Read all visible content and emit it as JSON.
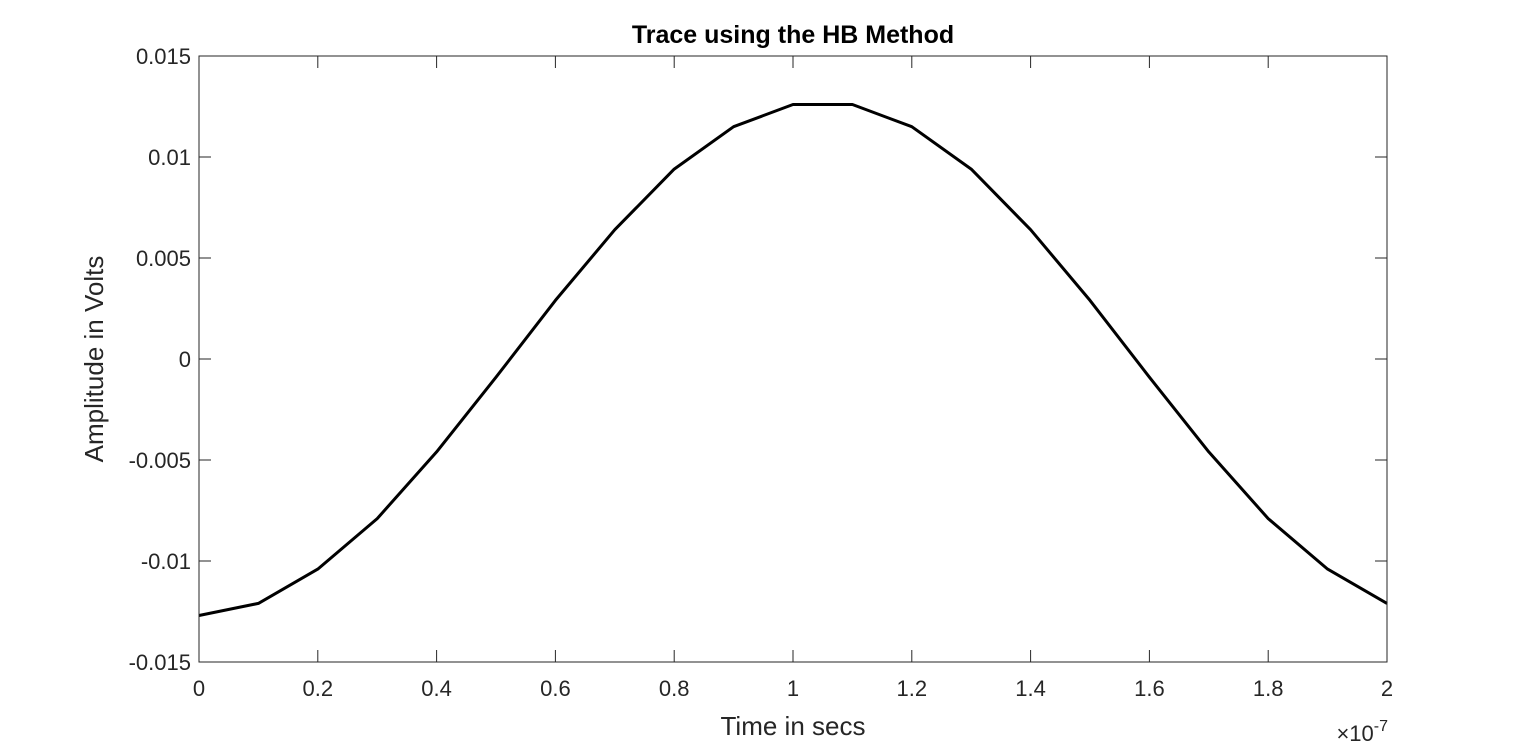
{
  "chart_data": {
    "type": "line",
    "title": "Trace using the HB Method",
    "xlabel": "Time in secs",
    "ylabel": "Amplitude in Volts",
    "x_exponent": {
      "base": "×10",
      "power": "-7"
    },
    "xlim": [
      0,
      2
    ],
    "ylim": [
      -0.015,
      0.015
    ],
    "xticks": [
      0,
      0.2,
      0.4,
      0.6,
      0.8,
      1,
      1.2,
      1.4,
      1.6,
      1.8,
      2
    ],
    "xtick_labels": [
      "0",
      "0.2",
      "0.4",
      "0.6",
      "0.8",
      "1",
      "1.2",
      "1.4",
      "1.6",
      "1.8",
      "2"
    ],
    "yticks": [
      -0.015,
      -0.01,
      -0.005,
      0,
      0.005,
      0.01,
      0.015
    ],
    "ytick_labels": [
      "-0.015",
      "-0.01",
      "-0.005",
      "0",
      "0.005",
      "0.01",
      "0.015"
    ],
    "grid": false,
    "series": [
      {
        "color": "#000000",
        "x": [
          0,
          0.1,
          0.2,
          0.3,
          0.4,
          0.5,
          0.6,
          0.7,
          0.8,
          0.9,
          1.0,
          1.1,
          1.2,
          1.3,
          1.4,
          1.5,
          1.6,
          1.7,
          1.8,
          1.9,
          2.0
        ],
        "y": [
          -0.0127,
          -0.0121,
          -0.0104,
          -0.0079,
          -0.0046,
          -0.0009,
          0.0029,
          0.0064,
          0.0094,
          0.0115,
          0.0126,
          0.0126,
          0.0115,
          0.0094,
          0.0064,
          0.0029,
          -0.0009,
          -0.0046,
          -0.0079,
          -0.0104,
          -0.0121
        ]
      }
    ]
  }
}
